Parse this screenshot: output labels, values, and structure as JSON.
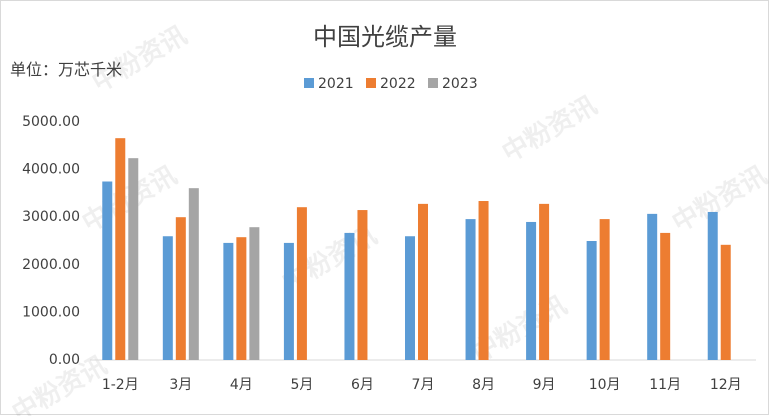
{
  "chart_data": {
    "type": "bar",
    "title": "中国光缆产量",
    "y_label": "单位：万芯千米",
    "watermark": "中粉资讯",
    "categories": [
      "1-2月",
      "3月",
      "4月",
      "5月",
      "6月",
      "7月",
      "8月",
      "9月",
      "10月",
      "11月",
      "12月"
    ],
    "series": [
      {
        "name": "2021",
        "color": "#5b9bd5",
        "values": [
          3750,
          2600,
          2460,
          2460,
          2670,
          2600,
          2960,
          2900,
          2500,
          3070,
          3110
        ]
      },
      {
        "name": "2022",
        "color": "#ed7d31",
        "values": [
          4660,
          3000,
          2580,
          3210,
          3150,
          3280,
          3340,
          3280,
          2960,
          2670,
          2420
        ]
      },
      {
        "name": "2023",
        "color": "#a5a5a5",
        "values": [
          4240,
          3610,
          2790,
          null,
          null,
          null,
          null,
          null,
          null,
          null,
          null
        ]
      }
    ],
    "ylim": [
      0,
      5000
    ],
    "yticks": [
      {
        "value": 0,
        "label": "0.00"
      },
      {
        "value": 1000,
        "label": "1000.00"
      },
      {
        "value": 2000,
        "label": "2000.00"
      },
      {
        "value": 3000,
        "label": "3000.00"
      },
      {
        "value": 4000,
        "label": "4000.00"
      },
      {
        "value": 5000,
        "label": "5000.00"
      }
    ],
    "grid": false,
    "legend": "top"
  }
}
